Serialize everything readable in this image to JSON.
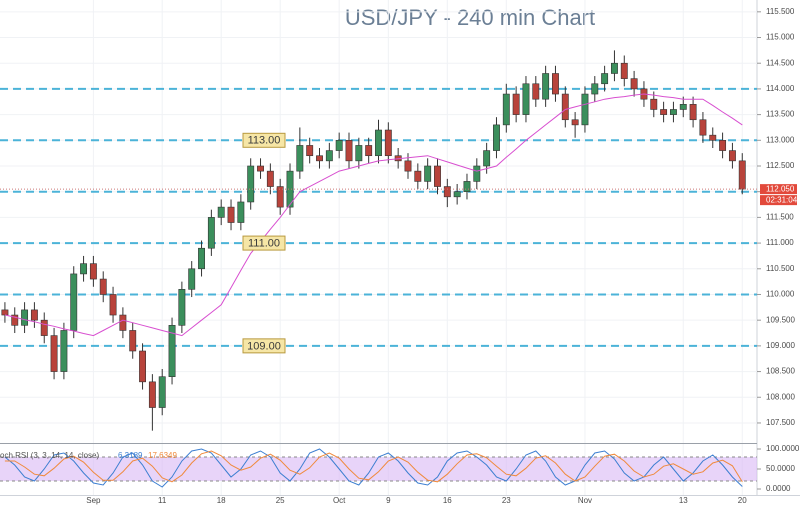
{
  "chart_data": {
    "type": "candlestick",
    "title": "USD/JPY - 240 min Chart",
    "categories": [
      null,
      null,
      null,
      null,
      null,
      null,
      null,
      null,
      null,
      "Sep",
      null,
      null,
      null,
      null,
      null,
      null,
      "11",
      null,
      null,
      null,
      null,
      null,
      "18",
      null,
      null,
      null,
      null,
      null,
      "25",
      null,
      null,
      null,
      null,
      null,
      "Oct",
      null,
      null,
      null,
      null,
      "9",
      null,
      null,
      null,
      null,
      null,
      "16",
      null,
      null,
      null,
      null,
      null,
      "23",
      null,
      null,
      null,
      null,
      null,
      null,
      null,
      "Nov",
      null,
      null,
      null,
      null,
      null,
      null,
      null,
      null,
      null,
      "13",
      null,
      null,
      null,
      null,
      null,
      "20"
    ],
    "open": [
      109.7,
      109.6,
      109.4,
      109.7,
      109.5,
      109.2,
      108.5,
      109.3,
      110.4,
      110.6,
      110.3,
      110.0,
      109.6,
      109.3,
      108.9,
      108.3,
      107.8,
      108.4,
      109.4,
      110.1,
      110.5,
      110.9,
      111.5,
      111.7,
      111.4,
      111.8,
      112.5,
      112.4,
      112.1,
      111.7,
      112.4,
      112.9,
      112.7,
      112.6,
      112.8,
      113.0,
      112.6,
      112.9,
      112.7,
      113.2,
      112.7,
      112.6,
      112.4,
      112.2,
      112.5,
      112.1,
      111.9,
      112.0,
      112.2,
      112.5,
      112.8,
      113.3,
      113.9,
      113.5,
      114.1,
      113.8,
      114.3,
      113.9,
      113.4,
      113.3,
      113.9,
      114.1,
      114.3,
      114.5,
      114.2,
      114.0,
      113.8,
      113.6,
      113.5,
      113.6,
      113.7,
      113.4,
      113.1,
      113.0,
      112.8,
      112.6
    ],
    "high": [
      109.85,
      109.75,
      109.85,
      109.85,
      109.65,
      109.35,
      109.45,
      110.55,
      110.75,
      110.75,
      110.45,
      110.15,
      109.75,
      109.45,
      109.05,
      108.45,
      108.55,
      109.55,
      110.25,
      110.65,
      111.05,
      111.65,
      111.85,
      111.85,
      111.95,
      112.65,
      112.65,
      112.55,
      112.25,
      112.55,
      113.25,
      113.05,
      112.85,
      112.95,
      113.15,
      113.15,
      113.05,
      113.05,
      113.4,
      113.35,
      112.85,
      112.75,
      112.55,
      112.65,
      112.65,
      112.25,
      112.15,
      112.35,
      112.65,
      112.95,
      113.45,
      114.1,
      114.05,
      114.25,
      114.25,
      114.45,
      114.45,
      114.05,
      113.55,
      114.05,
      114.25,
      114.45,
      114.75,
      114.65,
      114.35,
      114.15,
      113.95,
      113.75,
      113.75,
      113.85,
      113.85,
      113.55,
      113.25,
      113.15,
      112.95,
      112.75
    ],
    "low": [
      109.45,
      109.25,
      109.25,
      109.35,
      109.05,
      108.35,
      108.35,
      109.15,
      110.25,
      110.15,
      109.85,
      109.45,
      109.15,
      108.75,
      108.15,
      107.35,
      107.65,
      108.25,
      109.25,
      109.95,
      110.35,
      110.75,
      111.35,
      111.25,
      111.25,
      111.65,
      112.25,
      111.95,
      111.55,
      111.55,
      112.25,
      112.55,
      112.45,
      112.45,
      112.65,
      112.45,
      112.45,
      112.55,
      112.55,
      112.55,
      112.45,
      112.25,
      112.05,
      112.05,
      111.95,
      111.7,
      111.75,
      111.85,
      112.05,
      112.35,
      112.65,
      113.15,
      113.35,
      113.35,
      113.65,
      113.65,
      113.75,
      113.25,
      113.05,
      113.15,
      113.75,
      113.95,
      114.15,
      114.05,
      113.85,
      113.65,
      113.45,
      113.35,
      113.35,
      113.45,
      113.25,
      112.95,
      112.85,
      112.65,
      112.45,
      111.95
    ],
    "close": [
      109.6,
      109.4,
      109.7,
      109.5,
      109.2,
      108.5,
      109.3,
      110.4,
      110.6,
      110.3,
      110.0,
      109.6,
      109.3,
      108.9,
      108.3,
      107.8,
      108.4,
      109.4,
      110.1,
      110.5,
      110.9,
      111.5,
      111.7,
      111.4,
      111.8,
      112.5,
      112.4,
      112.1,
      111.7,
      112.4,
      112.9,
      112.7,
      112.6,
      112.8,
      113.0,
      112.6,
      112.9,
      112.7,
      113.2,
      112.7,
      112.6,
      112.4,
      112.2,
      112.5,
      112.1,
      111.9,
      112.0,
      112.2,
      112.5,
      112.8,
      113.3,
      113.9,
      113.5,
      114.1,
      113.8,
      114.3,
      113.9,
      113.4,
      113.3,
      113.9,
      114.1,
      114.3,
      114.5,
      114.2,
      114.0,
      113.8,
      113.6,
      113.5,
      113.6,
      113.7,
      113.4,
      113.1,
      113.0,
      112.8,
      112.6,
      112.05
    ],
    "up_color": "#3b8f5c",
    "down_color": "#b8433b",
    "ma": {
      "color": "#d84fd0",
      "values": [
        109.6,
        109.56,
        109.51,
        109.47,
        109.42,
        109.38,
        109.33,
        109.29,
        109.24,
        109.2,
        109.3,
        109.4,
        109.5,
        109.45,
        109.4,
        109.35,
        109.3,
        109.25,
        109.2,
        109.35,
        109.5,
        109.65,
        109.8,
        110.13,
        110.47,
        110.8,
        111.03,
        111.27,
        111.5,
        111.75,
        112.0,
        112.1,
        112.2,
        112.3,
        112.4,
        112.45,
        112.5,
        112.55,
        112.6,
        112.62,
        112.64,
        112.66,
        112.68,
        112.7,
        112.64,
        112.58,
        112.52,
        112.46,
        112.4,
        112.45,
        112.5,
        112.67,
        112.83,
        113.0,
        113.15,
        113.3,
        113.45,
        113.6,
        113.65,
        113.7,
        113.75,
        113.8,
        113.83,
        113.85,
        113.88,
        113.9,
        113.88,
        113.85,
        113.83,
        113.8,
        113.8,
        113.8,
        113.68,
        113.55,
        113.43,
        113.3
      ]
    },
    "last_price_label": "112.050",
    "countdown": "02:31:04",
    "ylim": [
      107.11,
      115.73
    ],
    "yticks": [
      {
        "value": 107.5,
        "label": "107.500"
      },
      {
        "value": 108,
        "label": "108.000"
      },
      {
        "value": 108.5,
        "label": "108.500"
      },
      {
        "value": 109,
        "label": "109.000"
      },
      {
        "value": 109.5,
        "label": "109.500"
      },
      {
        "value": 110,
        "label": "110.000"
      },
      {
        "value": 110.5,
        "label": "110.500"
      },
      {
        "value": 111,
        "label": "111.000"
      },
      {
        "value": 111.5,
        "label": "111.500"
      },
      {
        "value": 112,
        "label": "112.000"
      },
      {
        "value": 112.5,
        "label": "112.500"
      },
      {
        "value": 113,
        "label": "113.000"
      },
      {
        "value": 113.5,
        "label": "113.500"
      },
      {
        "value": 114,
        "label": "114.000"
      },
      {
        "value": 114.5,
        "label": "114.500"
      },
      {
        "value": 115,
        "label": "115.000"
      },
      {
        "value": 115.5,
        "label": "115.500"
      }
    ],
    "hlines": [
      114,
      113,
      112,
      111,
      110,
      109
    ],
    "hline_color": "#4bb3d8",
    "levels": [
      {
        "value": 113,
        "label": "113.00"
      },
      {
        "value": 111,
        "label": "111.00"
      },
      {
        "value": 109,
        "label": "109.00"
      }
    ],
    "grid": true,
    "rsi": {
      "title": "och RSI (3, 3, 14, 14, close)",
      "ylim": [
        -15,
        112.5
      ],
      "yticks": [
        {
          "value": 100,
          "label": "100.0000"
        },
        {
          "value": 50,
          "label": "50.0000"
        },
        {
          "value": 0,
          "label": "0.0000"
        }
      ],
      "band": [
        20,
        80
      ],
      "band_color": "#d9b8f5",
      "series": [
        {
          "color": "#3d7fd1",
          "last_label": "6.3189",
          "values": [
            80,
            60,
            30,
            20,
            50,
            85,
            90,
            70,
            40,
            15,
            10,
            40,
            80,
            90,
            60,
            20,
            5,
            30,
            70,
            95,
            100,
            90,
            60,
            30,
            50,
            85,
            95,
            80,
            40,
            20,
            50,
            90,
            100,
            80,
            50,
            20,
            10,
            40,
            80,
            90,
            70,
            40,
            15,
            10,
            30,
            70,
            90,
            95,
            80,
            60,
            30,
            20,
            50,
            85,
            95,
            70,
            30,
            10,
            20,
            60,
            90,
            95,
            75,
            40,
            20,
            30,
            60,
            80,
            50,
            20,
            40,
            70,
            85,
            60,
            30,
            6.3189
          ]
        },
        {
          "color": "#f08a3c",
          "last_label": "17.6349",
          "values": [
            70,
            70,
            55,
            37,
            33,
            52,
            75,
            82,
            67,
            42,
            22,
            22,
            43,
            70,
            77,
            57,
            28,
            18,
            35,
            65,
            88,
            95,
            83,
            60,
            47,
            55,
            77,
            87,
            72,
            47,
            37,
            53,
            80,
            90,
            77,
            50,
            27,
            23,
            43,
            70,
            80,
            67,
            42,
            22,
            18,
            37,
            63,
            85,
            88,
            78,
            57,
            37,
            33,
            52,
            77,
            83,
            65,
            37,
            20,
            30,
            57,
            82,
            87,
            70,
            45,
            30,
            37,
            57,
            63,
            50,
            37,
            43,
            65,
            72,
            58,
            17.6349
          ]
        }
      ]
    }
  }
}
